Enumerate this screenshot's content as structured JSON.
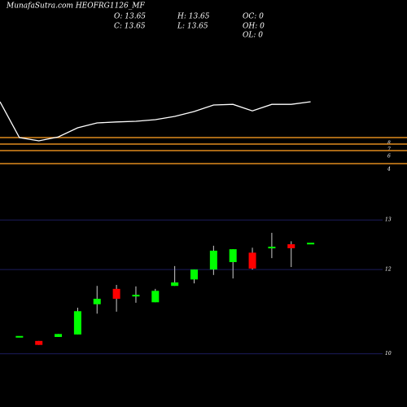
{
  "header": {
    "title": "MunafaSutra.com HEOFRG1126_MF",
    "info": [
      "O: 13.65",
      "C: 13.65",
      "H: 13.65",
      "L: 13.65",
      "OC: 0",
      "OH: 0",
      "OL: 0"
    ]
  },
  "chart_data": [
    {
      "type": "line",
      "ylim": [
        0,
        18
      ],
      "series": [
        {
          "color": "#ffffff",
          "values": [
            13.5,
            8,
            7.5,
            8.1,
            9.5,
            10.25,
            10.4,
            10.5,
            10.75,
            11.25,
            12,
            13,
            13.1,
            12.1,
            13.1,
            13.1,
            13.5
          ]
        }
      ],
      "levels": [
        8,
        7,
        6,
        4
      ],
      "level_color": "#e08a1e"
    },
    {
      "type": "candlestick",
      "ylim": [
        9.72,
        13.66
      ],
      "yticks": [
        13,
        12,
        {
          "value": 10.3,
          "label": "10"
        }
      ],
      "grid": true,
      "grid_color": "#1c1c5c",
      "up_color": "#00ff00",
      "down_color": "#ff0000",
      "candles": [
        {
          "open": 10.66,
          "high": 10.66,
          "low": 10.66,
          "close": 10.66
        },
        {
          "open": 10.56,
          "high": 10.56,
          "low": 10.48,
          "close": 10.48
        },
        {
          "open": 10.64,
          "high": 10.7,
          "low": 10.64,
          "close": 10.7
        },
        {
          "open": 10.69,
          "high": 11.23,
          "low": 10.69,
          "close": 11.16
        },
        {
          "open": 11.3,
          "high": 11.67,
          "low": 11.11,
          "close": 11.41
        },
        {
          "open": 11.61,
          "high": 11.69,
          "low": 11.15,
          "close": 11.41
        },
        {
          "open": 11.49,
          "high": 11.66,
          "low": 11.33,
          "close": 11.49
        },
        {
          "open": 11.34,
          "high": 11.61,
          "low": 11.34,
          "close": 11.57
        },
        {
          "open": 11.67,
          "high": 12.07,
          "low": 11.67,
          "close": 11.74
        },
        {
          "open": 11.8,
          "high": 12,
          "low": 11.72,
          "close": 12
        },
        {
          "open": 12,
          "high": 12.48,
          "low": 11.89,
          "close": 12.38
        },
        {
          "open": 12.15,
          "high": 12.41,
          "low": 11.82,
          "close": 12.41
        },
        {
          "open": 12.34,
          "high": 12.44,
          "low": 12,
          "close": 12.02
        },
        {
          "open": 12.44,
          "high": 12.74,
          "low": 12.23,
          "close": 12.46
        },
        {
          "open": 12.51,
          "high": 12.57,
          "low": 12.05,
          "close": 12.43
        },
        {
          "open": 12.54,
          "high": 12.54,
          "low": 12.54,
          "close": 12.54
        }
      ]
    }
  ]
}
